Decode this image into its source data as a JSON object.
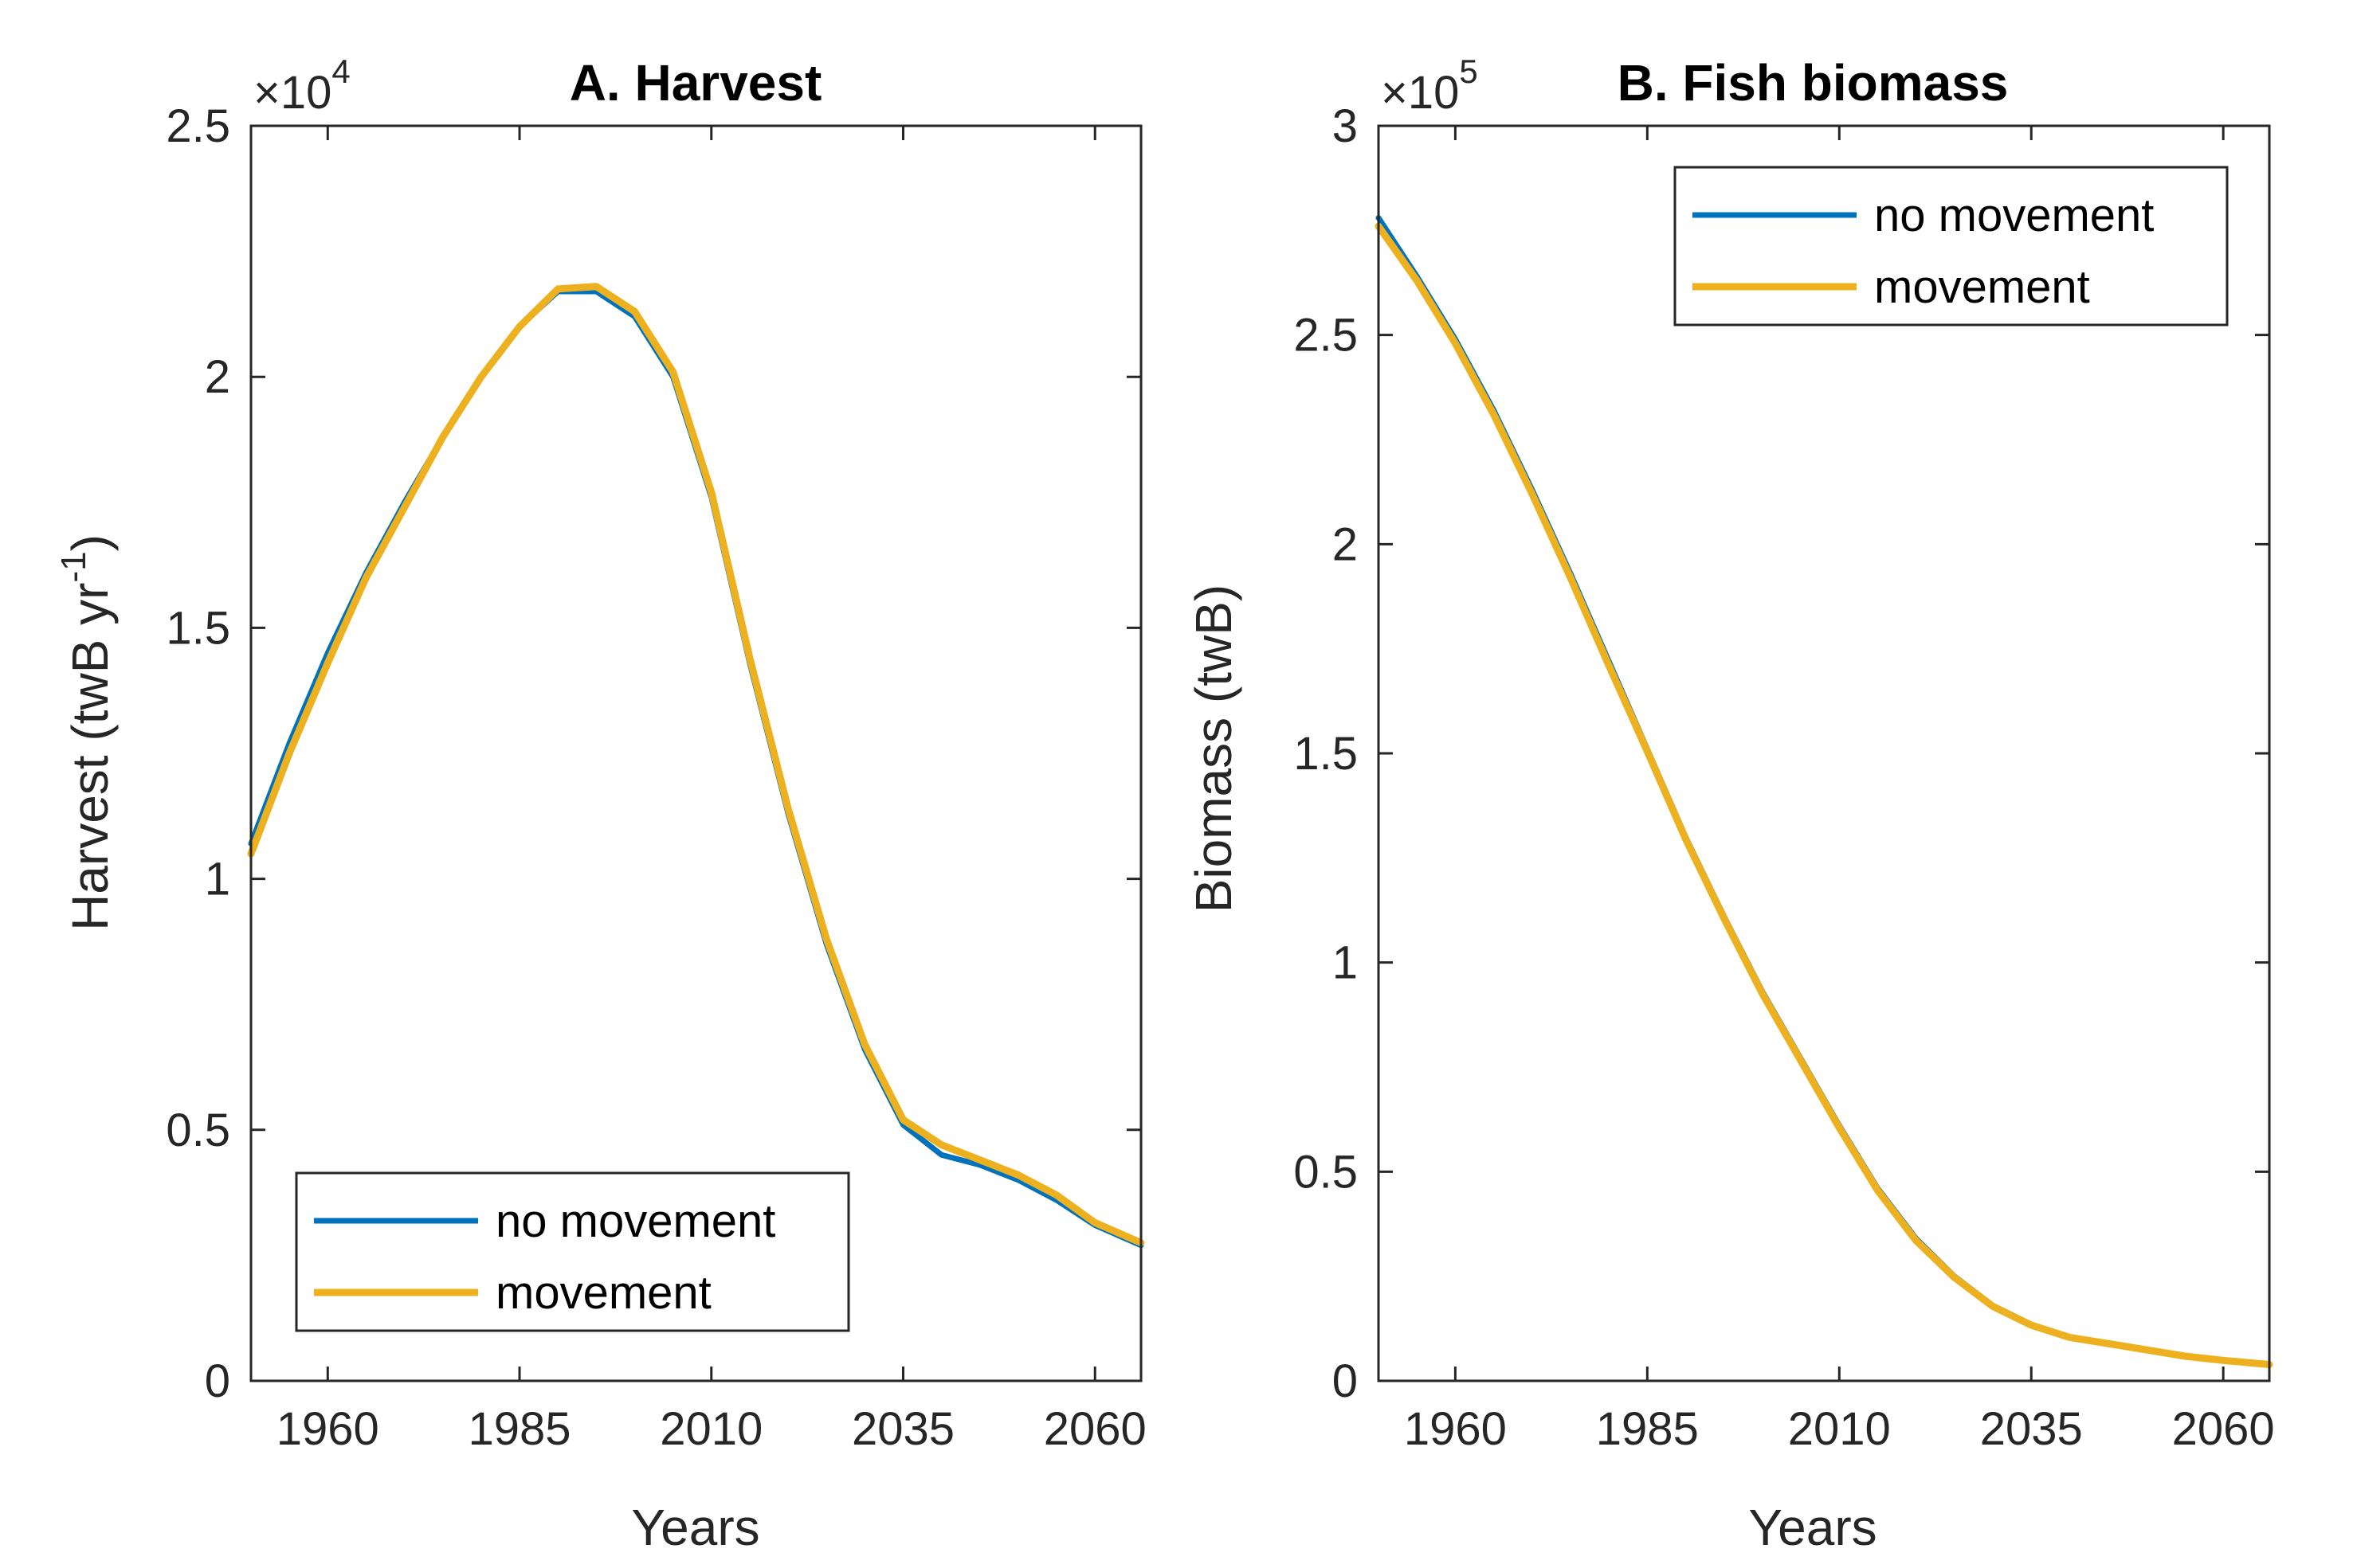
{
  "chart_data": [
    {
      "type": "line",
      "title": "A. Harvest",
      "xlabel": "Years",
      "ylabel": "Harvest (twB yr",
      "ylabel_sup": "-1",
      "ylabel_end": ")",
      "y_multiplier": {
        "base": "×10",
        "exp": "4"
      },
      "xlim": [
        1950,
        2066
      ],
      "ylim": [
        0,
        25000
      ],
      "xticks": [
        1960,
        1985,
        2010,
        2035,
        2060
      ],
      "yticks": [
        0,
        5000,
        10000,
        15000,
        20000,
        25000
      ],
      "ytick_labels": [
        "0",
        "0.5",
        "1",
        "1.5",
        "2",
        "2.5"
      ],
      "grid": false,
      "legend_position": "bottom-left",
      "series": [
        {
          "name": "no movement",
          "color": "#0072BD",
          "x": [
            1950,
            1955,
            1960,
            1965,
            1970,
            1975,
            1980,
            1985,
            1990,
            1995,
            2000,
            2005,
            2010,
            2015,
            2020,
            2025,
            2030,
            2035,
            2040,
            2045,
            2050,
            2055,
            2060,
            2066
          ],
          "y": [
            10700,
            12700,
            14500,
            16100,
            17500,
            18800,
            20000,
            21000,
            21700,
            21700,
            21200,
            20000,
            17600,
            14300,
            11300,
            8700,
            6600,
            5100,
            4500,
            4300,
            4000,
            3600,
            3100,
            2700
          ]
        },
        {
          "name": "movement",
          "color": "#EDB120",
          "x": [
            1950,
            1955,
            1960,
            1965,
            1970,
            1975,
            1980,
            1985,
            1990,
            1995,
            2000,
            2005,
            2010,
            2015,
            2020,
            2025,
            2030,
            2035,
            2040,
            2045,
            2050,
            2055,
            2060,
            2066
          ],
          "y": [
            10500,
            12500,
            14300,
            16000,
            17400,
            18800,
            20000,
            21000,
            21750,
            21800,
            21300,
            20100,
            17700,
            14400,
            11400,
            8800,
            6700,
            5200,
            4700,
            4400,
            4100,
            3700,
            3150,
            2750
          ]
        }
      ]
    },
    {
      "type": "line",
      "title": "B. Fish biomass",
      "xlabel": "Years",
      "ylabel": "Biomass (twB)",
      "y_multiplier": {
        "base": "×10",
        "exp": "5"
      },
      "xlim": [
        1950,
        2066
      ],
      "ylim": [
        0,
        300000
      ],
      "xticks": [
        1960,
        1985,
        2010,
        2035,
        2060
      ],
      "yticks": [
        0,
        50000,
        100000,
        150000,
        200000,
        250000,
        300000
      ],
      "ytick_labels": [
        "0",
        "0.5",
        "1",
        "1.5",
        "2",
        "2.5",
        "3"
      ],
      "grid": false,
      "legend_position": "top-right",
      "series": [
        {
          "name": "no movement",
          "color": "#0072BD",
          "x": [
            1950,
            1955,
            1960,
            1965,
            1970,
            1975,
            1980,
            1985,
            1990,
            1995,
            2000,
            2005,
            2010,
            2015,
            2020,
            2025,
            2030,
            2035,
            2040,
            2045,
            2050,
            2055,
            2060,
            2066
          ],
          "y": [
            278000,
            264000,
            249000,
            232000,
            213000,
            193000,
            172000,
            151000,
            130000,
            111000,
            93000,
            77000,
            61000,
            46000,
            34000,
            25000,
            18000,
            13500,
            10500,
            9000,
            7500,
            6000,
            5000,
            4000
          ]
        },
        {
          "name": "movement",
          "color": "#EDB120",
          "x": [
            1950,
            1955,
            1960,
            1965,
            1970,
            1975,
            1980,
            1985,
            1990,
            1995,
            2000,
            2005,
            2010,
            2015,
            2020,
            2025,
            2030,
            2035,
            2040,
            2045,
            2050,
            2055,
            2060,
            2066
          ],
          "y": [
            276000,
            263000,
            248000,
            231000,
            212000,
            192000,
            171000,
            150500,
            129500,
            110500,
            92500,
            76500,
            60500,
            45500,
            33500,
            24700,
            17800,
            13300,
            10400,
            8900,
            7400,
            5900,
            4900,
            3900
          ]
        }
      ]
    }
  ]
}
